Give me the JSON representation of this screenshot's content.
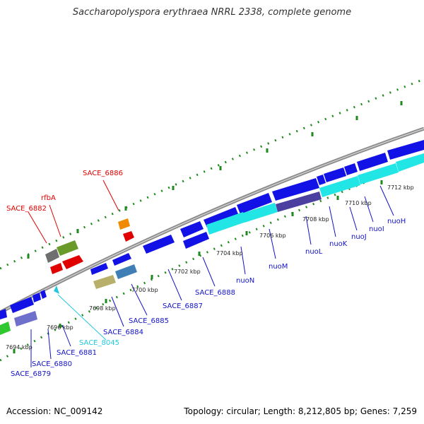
{
  "title": "Saccharopolyspora erythraea NRRL 2338, complete genome",
  "footer": {
    "accession": "Accession: NC_009142",
    "topology": "Topology: circular; Length: 8,212,805 bp; Genes: 7,259"
  },
  "colors": {
    "backbone": "#8c8c8c",
    "dots": "#1f8a1f",
    "forward_gene": "#1212e6",
    "reverse_gene": "#1212e6",
    "cyan_gene": "#22e5e5",
    "red_label": "#e00000",
    "blue_label": "#1212c8",
    "cyan_label": "#22c8e0"
  },
  "ticks": [
    "7694 kbp",
    "7696 kbp",
    "7698 kbp",
    "7700 kbp",
    "7702 kbp",
    "7704 kbp",
    "7706 kbp",
    "7708 kbp",
    "7710 kbp",
    "7712 kbp"
  ],
  "labels": {
    "top": [
      "SACE_6882",
      "rfbA",
      "SACE_6886"
    ],
    "bottom": [
      "SACE_6879",
      "SACE_6880",
      "SACE_6881",
      "SACE_8045",
      "SACE_6884",
      "SACE_6885",
      "SACE_6887",
      "SACE_6888",
      "nuoN",
      "nuoM",
      "nuoL",
      "nuoK",
      "nuoJ",
      "nuoI",
      "nuoH"
    ]
  }
}
